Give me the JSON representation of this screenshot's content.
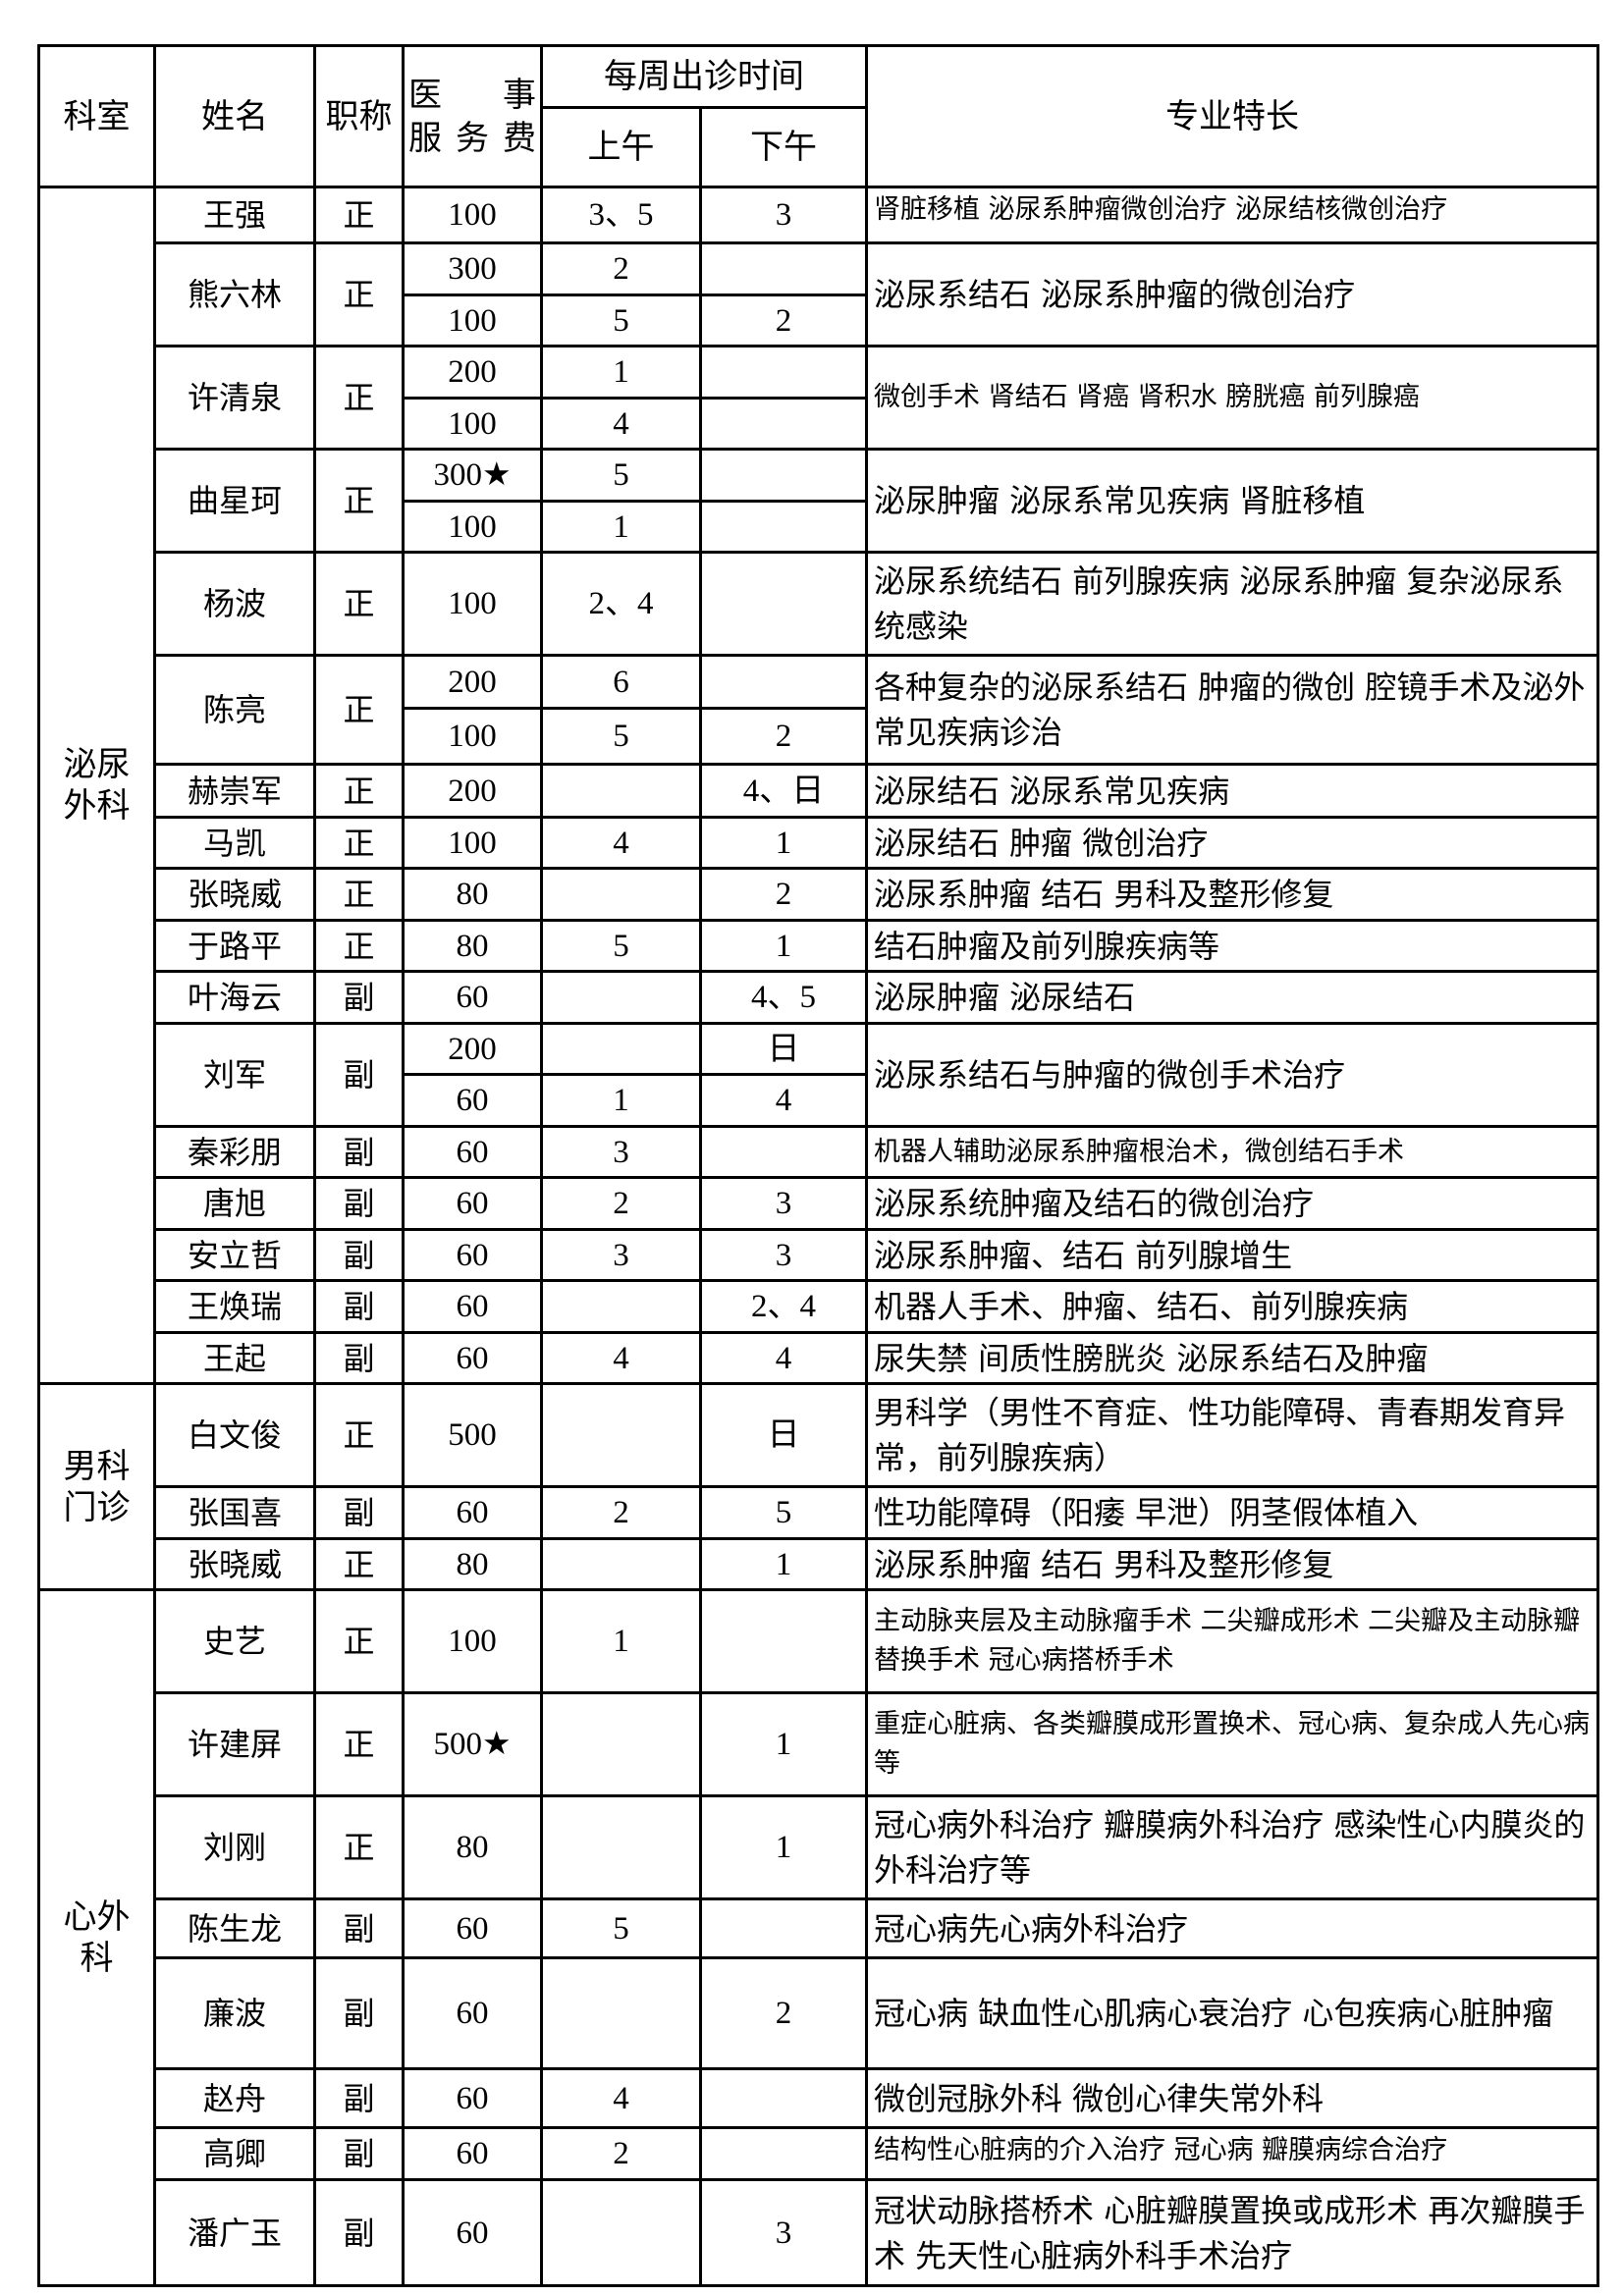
{
  "header": {
    "department": "科室",
    "name": "姓名",
    "title": "职称",
    "fee_line1": "医　事",
    "fee_line2": "服务费",
    "weekly_schedule": "每周出诊时间",
    "morning": "上午",
    "afternoon": "下午",
    "specialty": "专业特长"
  },
  "departments": [
    {
      "name": "泌尿外科",
      "doctors": [
        {
          "name": "王强",
          "title": "正",
          "sessions": [
            {
              "fee": "100",
              "am": "3、5",
              "pm": "3"
            }
          ],
          "specialty": "肾脏移植 泌尿系肿瘤微创治疗 泌尿结核微创治疗"
        },
        {
          "name": "熊六林",
          "title": "正",
          "sessions": [
            {
              "fee": "300",
              "am": "2",
              "pm": ""
            },
            {
              "fee": "100",
              "am": "5",
              "pm": "2"
            }
          ],
          "specialty": "泌尿系结石 泌尿系肿瘤的微创治疗"
        },
        {
          "name": "许清泉",
          "title": "正",
          "sessions": [
            {
              "fee": "200",
              "am": "1",
              "pm": ""
            },
            {
              "fee": "100",
              "am": "4",
              "pm": ""
            }
          ],
          "specialty": "微创手术 肾结石 肾癌 肾积水 膀胱癌 前列腺癌"
        },
        {
          "name": "曲星珂",
          "title": "正",
          "sessions": [
            {
              "fee": "300★",
              "am": "5",
              "pm": ""
            },
            {
              "fee": "100",
              "am": "1",
              "pm": ""
            }
          ],
          "specialty": "泌尿肿瘤 泌尿系常见疾病 肾脏移植"
        },
        {
          "name": "杨波",
          "title": "正",
          "sessions": [
            {
              "fee": "100",
              "am": "2、4",
              "pm": ""
            }
          ],
          "specialty": "泌尿系统结石 前列腺疾病 泌尿系肿瘤 复杂泌尿系统感染"
        },
        {
          "name": "陈亮",
          "title": "正",
          "sessions": [
            {
              "fee": "200",
              "am": "6",
              "pm": ""
            },
            {
              "fee": "100",
              "am": "5",
              "pm": "2"
            }
          ],
          "specialty": "各种复杂的泌尿系结石 肿瘤的微创 腔镜手术及泌外常见疾病诊治"
        },
        {
          "name": "赫崇军",
          "title": "正",
          "sessions": [
            {
              "fee": "200",
              "am": "",
              "pm": "4、日"
            }
          ],
          "specialty": "泌尿结石 泌尿系常见疾病"
        },
        {
          "name": "马凯",
          "title": "正",
          "sessions": [
            {
              "fee": "100",
              "am": "4",
              "pm": "1"
            }
          ],
          "specialty": "泌尿结石 肿瘤 微创治疗"
        },
        {
          "name": "张晓威",
          "title": "正",
          "sessions": [
            {
              "fee": "80",
              "am": "",
              "pm": "2"
            }
          ],
          "specialty": "泌尿系肿瘤 结石 男科及整形修复"
        },
        {
          "name": "于路平",
          "title": "正",
          "sessions": [
            {
              "fee": "80",
              "am": "5",
              "pm": "1"
            }
          ],
          "specialty": "结石肿瘤及前列腺疾病等"
        },
        {
          "name": "叶海云",
          "title": "副",
          "sessions": [
            {
              "fee": "60",
              "am": "",
              "pm": "4、5"
            }
          ],
          "specialty": "泌尿肿瘤 泌尿结石"
        },
        {
          "name": "刘军",
          "title": "副",
          "sessions": [
            {
              "fee": "200",
              "am": "",
              "pm": "日"
            },
            {
              "fee": "60",
              "am": "1",
              "pm": "4"
            }
          ],
          "specialty": "泌尿系结石与肿瘤的微创手术治疗"
        },
        {
          "name": "秦彩朋",
          "title": "副",
          "sessions": [
            {
              "fee": "60",
              "am": "3",
              "pm": ""
            }
          ],
          "specialty": "机器人辅助泌尿系肿瘤根治术，微创结石手术"
        },
        {
          "name": "唐旭",
          "title": "副",
          "sessions": [
            {
              "fee": "60",
              "am": "2",
              "pm": "3"
            }
          ],
          "specialty": "泌尿系统肿瘤及结石的微创治疗"
        },
        {
          "name": "安立哲",
          "title": "副",
          "sessions": [
            {
              "fee": "60",
              "am": "3",
              "pm": "3"
            }
          ],
          "specialty": "泌尿系肿瘤、结石 前列腺增生"
        },
        {
          "name": "王焕瑞",
          "title": "副",
          "sessions": [
            {
              "fee": "60",
              "am": "",
              "pm": "2、4"
            }
          ],
          "specialty": "机器人手术、肿瘤、结石、前列腺疾病"
        },
        {
          "name": "王起",
          "title": "副",
          "sessions": [
            {
              "fee": "60",
              "am": "4",
              "pm": "4"
            }
          ],
          "specialty": "尿失禁 间质性膀胱炎 泌尿系结石及肿瘤"
        }
      ]
    },
    {
      "name": "男科门诊",
      "doctors": [
        {
          "name": "白文俊",
          "title": "正",
          "sessions": [
            {
              "fee": "500",
              "am": "",
              "pm": "日"
            }
          ],
          "specialty": "男科学（男性不育症、性功能障碍、青春期发育异常，前列腺疾病）"
        },
        {
          "name": "张国喜",
          "title": "副",
          "sessions": [
            {
              "fee": "60",
              "am": "2",
              "pm": "5"
            }
          ],
          "specialty": "性功能障碍（阳痿 早泄）阴茎假体植入"
        },
        {
          "name": "张晓威",
          "title": "正",
          "sessions": [
            {
              "fee": "80",
              "am": "",
              "pm": "1"
            }
          ],
          "specialty": "泌尿系肿瘤 结石 男科及整形修复"
        }
      ]
    },
    {
      "name": "心外科",
      "doctors": [
        {
          "name": "史艺",
          "title": "正",
          "sessions": [
            {
              "fee": "100",
              "am": "1",
              "pm": ""
            }
          ],
          "specialty": "主动脉夹层及主动脉瘤手术 二尖瓣成形术 二尖瓣及主动脉瓣替换手术 冠心病搭桥手术"
        },
        {
          "name": "许建屏",
          "title": "正",
          "sessions": [
            {
              "fee": "500★",
              "am": "",
              "pm": "1"
            }
          ],
          "specialty": "重症心脏病、各类瓣膜成形置换术、冠心病、复杂成人先心病等"
        },
        {
          "name": "刘刚",
          "title": "正",
          "sessions": [
            {
              "fee": "80",
              "am": "",
              "pm": "1"
            }
          ],
          "specialty": "冠心病外科治疗 瓣膜病外科治疗 感染性心内膜炎的外科治疗等"
        },
        {
          "name": "陈生龙",
          "title": "副",
          "sessions": [
            {
              "fee": "60",
              "am": "5",
              "pm": ""
            }
          ],
          "specialty": "冠心病先心病外科治疗"
        },
        {
          "name": "廉波",
          "title": "副",
          "sessions": [
            {
              "fee": "60",
              "am": "",
              "pm": "2"
            }
          ],
          "specialty": "冠心病 缺血性心肌病心衰治疗 心包疾病心脏肿瘤"
        },
        {
          "name": "赵舟",
          "title": "副",
          "sessions": [
            {
              "fee": "60",
              "am": "4",
              "pm": ""
            }
          ],
          "specialty": "微创冠脉外科 微创心律失常外科"
        },
        {
          "name": "高卿",
          "title": "副",
          "sessions": [
            {
              "fee": "60",
              "am": "2",
              "pm": ""
            }
          ],
          "specialty": "结构性心脏病的介入治疗 冠心病 瓣膜病综合治疗"
        },
        {
          "name": "潘广玉",
          "title": "副",
          "sessions": [
            {
              "fee": "60",
              "am": "",
              "pm": "3"
            }
          ],
          "specialty": "冠状动脉搭桥术 心脏瓣膜置换或成形术 再次瓣膜手术 先天性心脏病外科手术治疗"
        }
      ]
    }
  ]
}
